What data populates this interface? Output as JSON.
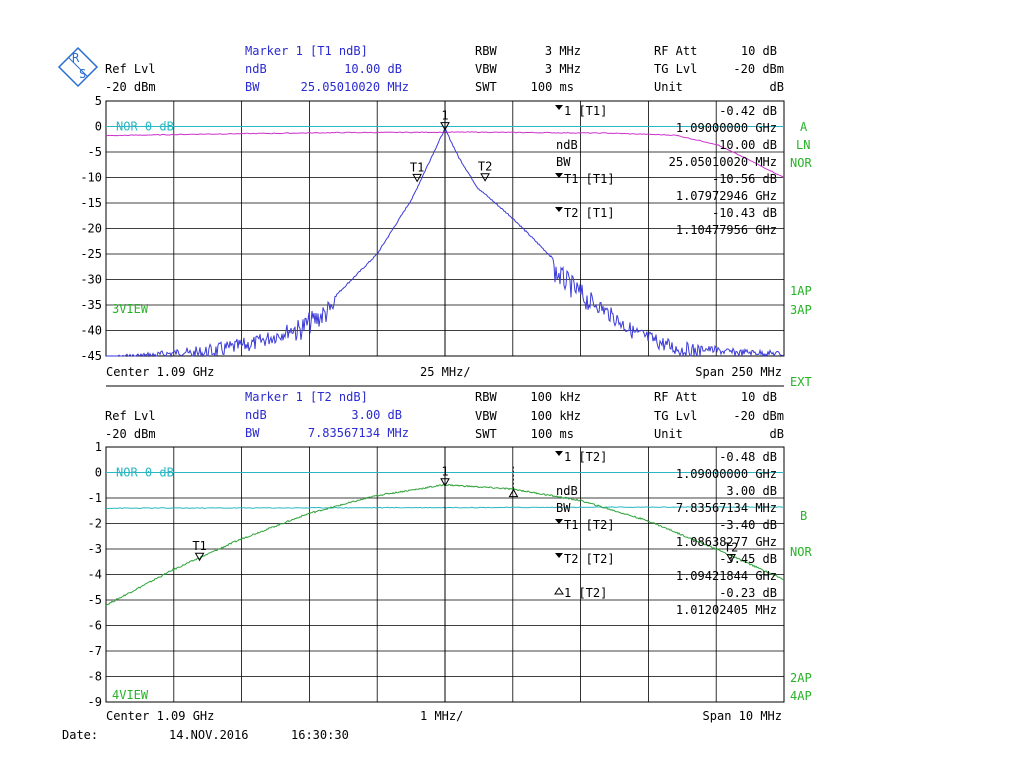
{
  "footer": {
    "date_label": "Date:",
    "date_value": "14.NOV.2016",
    "time_value": "16:30:30"
  },
  "colors": {
    "trace_top": "#3a3ad8",
    "trace_bottom": "#2fa33a",
    "max_hold": "#cc33cc",
    "reference": "#2ab7c2",
    "annotation_green": "#27b327",
    "annotation_blue": "#2a2ad0",
    "grid": "#000000",
    "background": "#ffffff"
  },
  "chart_data": [
    {
      "type": "line",
      "panel": "top",
      "header": {
        "ref_lvl_label": "Ref Lvl",
        "ref_lvl_value": "-20 dBm",
        "marker_title": "Marker 1 [T1 ndB]",
        "ndb_label": "ndB",
        "ndb_value": "10.00 dB",
        "bw_label": "BW",
        "bw_value": "25.05010020 MHz",
        "rbw_label": "RBW",
        "rbw_value": "3 MHz",
        "vbw_label": "VBW",
        "vbw_value": "3 MHz",
        "swt_label": "SWT",
        "swt_value": "100 ms",
        "rfatt_label": "RF Att",
        "rfatt_value": "10 dB",
        "tglvl_label": "TG Lvl",
        "tglvl_value": "-20 dBm",
        "unit_label": "Unit",
        "unit_value": "dB"
      },
      "y_ticks": [
        "5",
        "0",
        "-5",
        "-10",
        "-15",
        "-20",
        "-25",
        "-30",
        "-35",
        "-40",
        "-45"
      ],
      "ylim": [
        -45,
        5
      ],
      "xlim": [
        965,
        1215
      ],
      "x_unit": "MHz",
      "footer": {
        "center": "Center 1.09 GHz",
        "div": "25 MHz/",
        "span": "Span 250 MHz"
      },
      "ref_line_label": "NOR 0 dB",
      "view_label": "3VIEW",
      "right_labels": {
        "trace": "A",
        "scale": "LN",
        "mode": "NOR",
        "ap1": "1AP",
        "ap2": "3AP",
        "ext": "EXT"
      },
      "marker_table": [
        {
          "tri": true,
          "name": "1 [T1]",
          "v1": "-0.42 dB",
          "v2": "1.09000000 GHz"
        },
        {
          "tri": false,
          "name": "ndB",
          "v1": "10.00 dB",
          "v2": ""
        },
        {
          "tri": false,
          "name": "BW",
          "v1": "25.05010020 MHz",
          "v2": ""
        },
        {
          "tri": true,
          "name": "T1 [T1]",
          "v1": "-10.56 dB",
          "v2": "1.07972946 GHz"
        },
        {
          "tri": true,
          "name": "T2 [T1]",
          "v1": "-10.43 dB",
          "v2": "1.10477956 GHz"
        }
      ],
      "markers": [
        {
          "label": "1",
          "x": 1090.0,
          "y": -0.42
        },
        {
          "label": "T1",
          "x": 1079.73,
          "y": -10.56
        },
        {
          "label": "T2",
          "x": 1104.78,
          "y": -10.43
        }
      ],
      "series": [
        {
          "role": "trace",
          "x": [
            965,
            985,
            1000,
            1020,
            1035,
            1050,
            1065,
            1078,
            1085,
            1090,
            1095,
            1102,
            1115,
            1130,
            1145,
            1160,
            1175,
            1195,
            1215
          ],
          "values": [
            -45,
            -44,
            -43,
            -41,
            -38,
            -33,
            -25,
            -14,
            -6,
            -0.42,
            -6,
            -12,
            -18,
            -26,
            -33,
            -39,
            -42,
            -43.5,
            -44
          ]
        },
        {
          "role": "max_hold",
          "x": [
            965,
            1000,
            1050,
            1100,
            1150,
            1175,
            1190,
            1200,
            1215
          ],
          "values": [
            -1.8,
            -1.5,
            -1.2,
            -1.1,
            -1.3,
            -1.7,
            -3.5,
            -6.0,
            -10.0
          ]
        }
      ]
    },
    {
      "type": "line",
      "panel": "bottom",
      "header": {
        "ref_lvl_label": "Ref Lvl",
        "ref_lvl_value": "-20 dBm",
        "marker_title": "Marker 1 [T2 ndB]",
        "ndb_label": "ndB",
        "ndb_value": "3.00 dB",
        "bw_label": "BW",
        "bw_value": "7.83567134 MHz",
        "rbw_label": "RBW",
        "rbw_value": "100 kHz",
        "vbw_label": "VBW",
        "vbw_value": "100 kHz",
        "swt_label": "SWT",
        "swt_value": "100 ms",
        "rfatt_label": "RF Att",
        "rfatt_value": "10 dB",
        "tglvl_label": "TG Lvl",
        "tglvl_value": "-20 dBm",
        "unit_label": "Unit",
        "unit_value": "dB"
      },
      "y_ticks": [
        "1",
        "0",
        "-1",
        "-2",
        "-3",
        "-4",
        "-5",
        "-6",
        "-7",
        "-8",
        "-9"
      ],
      "ylim": [
        -9,
        1
      ],
      "xlim": [
        1085,
        1095
      ],
      "x_unit": "MHz",
      "footer": {
        "center": "Center 1.09 GHz",
        "div": "1 MHz/",
        "span": "Span 10 MHz"
      },
      "ref_line_label": "NOR 0 dB",
      "view_label": "4VIEW",
      "right_labels": {
        "trace": "B",
        "mode": "NOR",
        "ap1": "2AP",
        "ap2": "4AP"
      },
      "marker_table": [
        {
          "tri": true,
          "name": "1 [T2]",
          "v1": "-0.48 dB",
          "v2": "1.09000000 GHz"
        },
        {
          "tri": false,
          "name": "ndB",
          "v1": "3.00 dB",
          "v2": ""
        },
        {
          "tri": false,
          "name": "BW",
          "v1": "7.83567134 MHz",
          "v2": ""
        },
        {
          "tri": true,
          "name": "T1 [T2]",
          "v1": "-3.40 dB",
          "v2": "1.08638277 GHz"
        },
        {
          "tri": true,
          "name": "T2 [T2]",
          "v1": "-3.45 dB",
          "v2": "1.09421844 GHz"
        },
        {
          "tri": false,
          "delta": true,
          "name": "1 [T2]",
          "v1": "-0.23 dB",
          "v2": "1.01202405 MHz"
        }
      ],
      "markers": [
        {
          "label": "1",
          "x": 1090.0,
          "y": -0.48
        },
        {
          "label": "T1",
          "x": 1086.38,
          "y": -3.4
        },
        {
          "label": "T2",
          "x": 1094.22,
          "y": -3.45
        },
        {
          "label": "1",
          "x": 1091.01,
          "y": -0.71,
          "delta": true
        }
      ],
      "series": [
        {
          "role": "trace",
          "x": [
            1085,
            1086,
            1087,
            1088,
            1089,
            1090,
            1091,
            1092,
            1093,
            1094,
            1095
          ],
          "values": [
            -5.2,
            -3.8,
            -2.6,
            -1.6,
            -0.9,
            -0.48,
            -0.65,
            -1.1,
            -1.9,
            -3.0,
            -4.2
          ]
        },
        {
          "role": "max_hold",
          "x": [
            1085,
            1095
          ],
          "values": [
            -1.4,
            -1.35
          ]
        }
      ]
    }
  ]
}
